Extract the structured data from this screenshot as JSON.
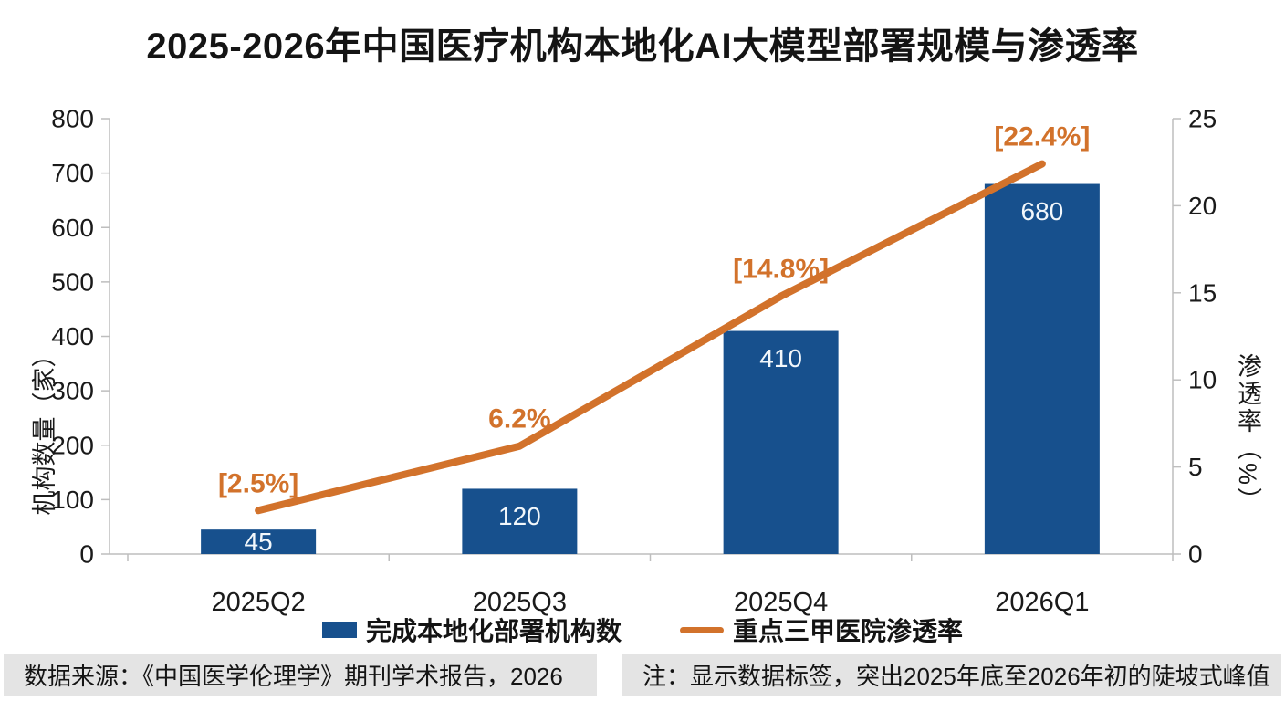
{
  "title": "2025-2026年中国医疗机构本地化AI大模型部署规模与渗透率",
  "chart_data": {
    "type": "bar",
    "subtype": "bar-line-combo",
    "categories": [
      "2025Q2",
      "2025Q3",
      "2025Q4",
      "2026Q1"
    ],
    "series": [
      {
        "name": "完成本地化部署机构数",
        "type": "bar",
        "axis": "left",
        "color": "#17508D",
        "values": [
          45,
          120,
          410,
          680
        ],
        "data_labels": [
          "45",
          "120",
          "410",
          "680"
        ],
        "label_color": "#f2f7fb"
      },
      {
        "name": "重点三甲医院渗透率",
        "type": "line",
        "axis": "right",
        "color": "#D2722B",
        "values": [
          2.5,
          6.2,
          14.8,
          22.4
        ],
        "data_labels": [
          "[2.5%]",
          "6.2%",
          "[14.8%]",
          "[22.4%]"
        ],
        "label_color": "#D2722B"
      }
    ],
    "left_axis": {
      "title": "机构数量（家）",
      "min": 0,
      "max": 800,
      "ticks": [
        0,
        100,
        200,
        300,
        400,
        500,
        600,
        700,
        800
      ]
    },
    "right_axis": {
      "title": "渗透率（%）",
      "min": 0,
      "max": 25,
      "ticks": [
        0,
        5,
        10,
        15,
        20,
        25
      ]
    },
    "grid": false,
    "legend_position": "bottom"
  },
  "footer": {
    "source": "数据来源：《中国医学伦理学》期刊学术报告，2026",
    "note": "注：显示数据标签，突出2025年底至2026年初的陡坡式峰值"
  },
  "colors": {
    "bar": "#17508D",
    "line": "#D2722B",
    "axis": "#BEBEBE",
    "text": "#1A1A1A",
    "footer_bg": "#E4E4E4"
  }
}
